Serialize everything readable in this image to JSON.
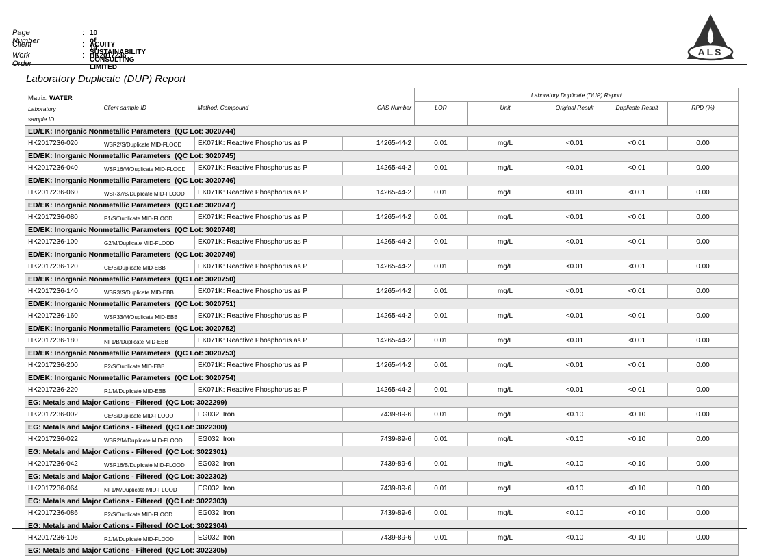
{
  "header": {
    "fields": [
      {
        "label": "Page Number",
        "value": "10 of 14"
      },
      {
        "label": "Client",
        "value": "ACUITY SUSTAINABILITY CONSULTING LIMITED"
      },
      {
        "label": "Work Order",
        "value": "HK2017236"
      }
    ],
    "separator": ":",
    "logo": "ALS"
  },
  "title": "Laboratory Duplicate (DUP) Report",
  "table": {
    "matrix_label": "Matrix:",
    "matrix": "WATER",
    "super_header": "Laboratory Duplicate (DUP) Report",
    "columns": [
      "Laboratory sample ID",
      "Client sample ID",
      "Method: Compound",
      "CAS Number",
      "LOR",
      "Unit",
      "Original Result",
      "Duplicate Result",
      "RPD (%)"
    ],
    "groups": [
      {
        "header": "ED/EK: Inorganic Nonmetallic Parameters  (QC Lot: 3020744)",
        "rows": [
          [
            "HK2017236-020",
            "WSR2/S/Duplicate MID-FLOOD",
            "EK071K: Reactive Phosphorus as P",
            "14265-44-2",
            "0.01",
            "mg/L",
            "<0.01",
            "<0.01",
            "0.00"
          ]
        ]
      },
      {
        "header": "ED/EK: Inorganic Nonmetallic Parameters  (QC Lot: 3020745)",
        "rows": [
          [
            "HK2017236-040",
            "WSR16/M/Duplicate MID-FLOOD",
            "EK071K: Reactive Phosphorus as P",
            "14265-44-2",
            "0.01",
            "mg/L",
            "<0.01",
            "<0.01",
            "0.00"
          ]
        ]
      },
      {
        "header": "ED/EK: Inorganic Nonmetallic Parameters  (QC Lot: 3020746)",
        "rows": [
          [
            "HK2017236-060",
            "WSR37/B/Duplicate MID-FLOOD",
            "EK071K: Reactive Phosphorus as P",
            "14265-44-2",
            "0.01",
            "mg/L",
            "<0.01",
            "<0.01",
            "0.00"
          ]
        ]
      },
      {
        "header": "ED/EK: Inorganic Nonmetallic Parameters  (QC Lot: 3020747)",
        "rows": [
          [
            "HK2017236-080",
            "P1/S/Duplicate MID-FLOOD",
            "EK071K: Reactive Phosphorus as P",
            "14265-44-2",
            "0.01",
            "mg/L",
            "<0.01",
            "<0.01",
            "0.00"
          ]
        ]
      },
      {
        "header": "ED/EK: Inorganic Nonmetallic Parameters  (QC Lot: 3020748)",
        "rows": [
          [
            "HK2017236-100",
            "G2/M/Duplicate MID-FLOOD",
            "EK071K: Reactive Phosphorus as P",
            "14265-44-2",
            "0.01",
            "mg/L",
            "<0.01",
            "<0.01",
            "0.00"
          ]
        ]
      },
      {
        "header": "ED/EK: Inorganic Nonmetallic Parameters  (QC Lot: 3020749)",
        "rows": [
          [
            "HK2017236-120",
            "CE/B/Duplicate MID-EBB",
            "EK071K: Reactive Phosphorus as P",
            "14265-44-2",
            "0.01",
            "mg/L",
            "<0.01",
            "<0.01",
            "0.00"
          ]
        ]
      },
      {
        "header": "ED/EK: Inorganic Nonmetallic Parameters  (QC Lot: 3020750)",
        "rows": [
          [
            "HK2017236-140",
            "WSR3/S/Duplicate MID-EBB",
            "EK071K: Reactive Phosphorus as P",
            "14265-44-2",
            "0.01",
            "mg/L",
            "<0.01",
            "<0.01",
            "0.00"
          ]
        ]
      },
      {
        "header": "ED/EK: Inorganic Nonmetallic Parameters  (QC Lot: 3020751)",
        "rows": [
          [
            "HK2017236-160",
            "WSR33/M/Duplicate MID-EBB",
            "EK071K: Reactive Phosphorus as P",
            "14265-44-2",
            "0.01",
            "mg/L",
            "<0.01",
            "<0.01",
            "0.00"
          ]
        ]
      },
      {
        "header": "ED/EK: Inorganic Nonmetallic Parameters  (QC Lot: 3020752)",
        "rows": [
          [
            "HK2017236-180",
            "NF1/B/Duplicate MID-EBB",
            "EK071K: Reactive Phosphorus as P",
            "14265-44-2",
            "0.01",
            "mg/L",
            "<0.01",
            "<0.01",
            "0.00"
          ]
        ]
      },
      {
        "header": "ED/EK: Inorganic Nonmetallic Parameters  (QC Lot: 3020753)",
        "rows": [
          [
            "HK2017236-200",
            "P2/S/Duplicate MID-EBB",
            "EK071K: Reactive Phosphorus as P",
            "14265-44-2",
            "0.01",
            "mg/L",
            "<0.01",
            "<0.01",
            "0.00"
          ]
        ]
      },
      {
        "header": "ED/EK: Inorganic Nonmetallic Parameters  (QC Lot: 3020754)",
        "rows": [
          [
            "HK2017236-220",
            "R1/M/Duplicate MID-EBB",
            "EK071K: Reactive Phosphorus as P",
            "14265-44-2",
            "0.01",
            "mg/L",
            "<0.01",
            "<0.01",
            "0.00"
          ]
        ]
      },
      {
        "header": "EG: Metals and Major Cations - Filtered  (QC Lot: 3022299)",
        "rows": [
          [
            "HK2017236-002",
            "CE/S/Duplicate MID-FLOOD",
            "EG032: Iron",
            "7439-89-6",
            "0.01",
            "mg/L",
            "<0.10",
            "<0.10",
            "0.00"
          ]
        ]
      },
      {
        "header": "EG: Metals and Major Cations - Filtered  (QC Lot: 3022300)",
        "rows": [
          [
            "HK2017236-022",
            "WSR2/M/Duplicate MID-FLOOD",
            "EG032: Iron",
            "7439-89-6",
            "0.01",
            "mg/L",
            "<0.10",
            "<0.10",
            "0.00"
          ]
        ]
      },
      {
        "header": "EG: Metals and Major Cations - Filtered  (QC Lot: 3022301)",
        "rows": [
          [
            "HK2017236-042",
            "WSR16/B/Duplicate MID-FLOOD",
            "EG032: Iron",
            "7439-89-6",
            "0.01",
            "mg/L",
            "<0.10",
            "<0.10",
            "0.00"
          ]
        ]
      },
      {
        "header": "EG: Metals and Major Cations - Filtered  (QC Lot: 3022302)",
        "rows": [
          [
            "HK2017236-064",
            "NF1/M/Duplicate MID-FLOOD",
            "EG032: Iron",
            "7439-89-6",
            "0.01",
            "mg/L",
            "<0.10",
            "<0.10",
            "0.00"
          ]
        ]
      },
      {
        "header": "EG: Metals and Major Cations - Filtered  (QC Lot: 3022303)",
        "rows": [
          [
            "HK2017236-086",
            "P2/S/Duplicate MID-FLOOD",
            "EG032: Iron",
            "7439-89-6",
            "0.01",
            "mg/L",
            "<0.10",
            "<0.10",
            "0.00"
          ]
        ]
      },
      {
        "header": "EG: Metals and Major Cations - Filtered  (QC Lot: 3022304)",
        "rows": [
          [
            "HK2017236-106",
            "R1/M/Duplicate MID-FLOOD",
            "EG032: Iron",
            "7439-89-6",
            "0.01",
            "mg/L",
            "<0.10",
            "<0.10",
            "0.00"
          ]
        ]
      },
      {
        "header": "EG: Metals and Major Cations - Filtered  (QC Lot: 3022305)",
        "rows": []
      }
    ]
  }
}
